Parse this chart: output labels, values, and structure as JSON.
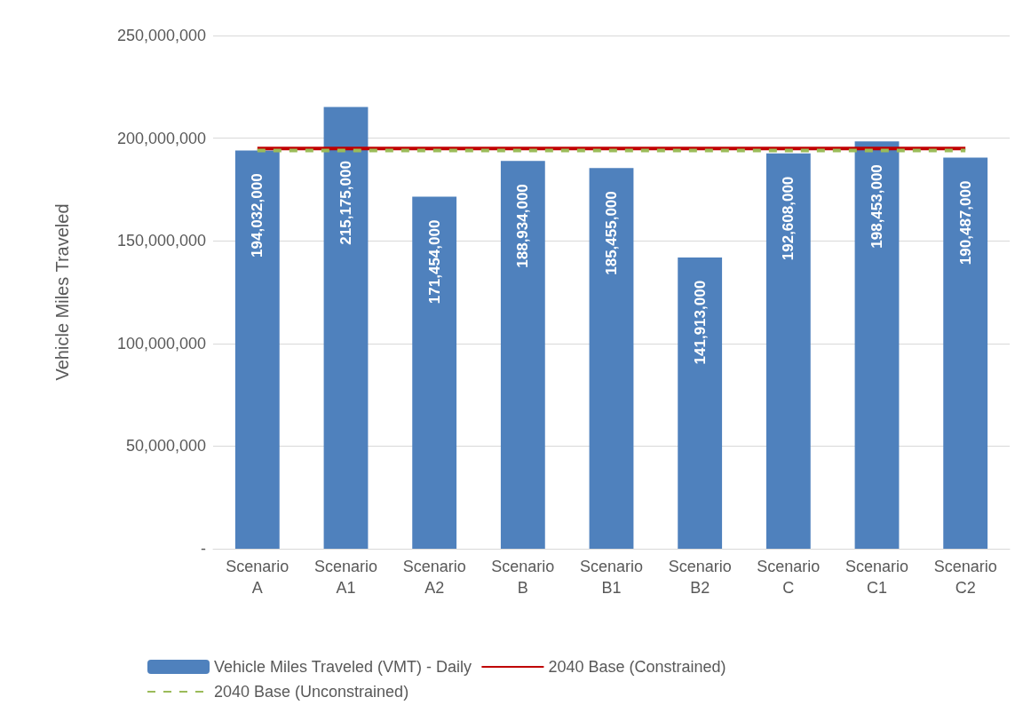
{
  "chart_data": {
    "type": "bar",
    "ylabel": "Vehicle Miles Traveled",
    "categories": [
      "Scenario A",
      "Scenario A1",
      "Scenario A2",
      "Scenario B",
      "Scenario B1",
      "Scenario B2",
      "Scenario C",
      "Scenario C1",
      "Scenario C2"
    ],
    "series": [
      {
        "name": "Vehicle Miles Traveled (VMT) - Daily",
        "color": "#4f81bd",
        "values": [
          194032000,
          215175000,
          171454000,
          188934000,
          185455000,
          141913000,
          192608000,
          198453000,
          190487000
        ],
        "value_labels": [
          "194,032,000",
          "215,175,000",
          "171,454,000",
          "188,934,000",
          "185,455,000",
          "141,913,000",
          "192,608,000",
          "198,453,000",
          "190,487,000"
        ]
      },
      {
        "name": "2040 Base (Constrained)",
        "type": "line",
        "color": "#c00000",
        "line_style": "solid",
        "values": [
          195000000,
          195000000,
          195000000,
          195000000,
          195000000,
          195000000,
          195000000,
          195000000,
          195000000
        ]
      },
      {
        "name": "2040 Base (Unconstrained)",
        "type": "line",
        "color": "#9bbb59",
        "line_style": "dashed",
        "values": [
          194000000,
          194000000,
          194000000,
          194000000,
          194000000,
          194000000,
          194000000,
          194000000,
          194000000
        ]
      }
    ],
    "ylim": [
      0,
      250000000
    ],
    "yticks": [
      {
        "value": 0,
        "label": "-"
      },
      {
        "value": 50000000,
        "label": "50,000,000"
      },
      {
        "value": 100000000,
        "label": "100,000,000"
      },
      {
        "value": 150000000,
        "label": "150,000,000"
      },
      {
        "value": 200000000,
        "label": "200,000,000"
      },
      {
        "value": 250000000,
        "label": "250,000,000"
      }
    ],
    "grid": "y",
    "legend": "bottom"
  }
}
